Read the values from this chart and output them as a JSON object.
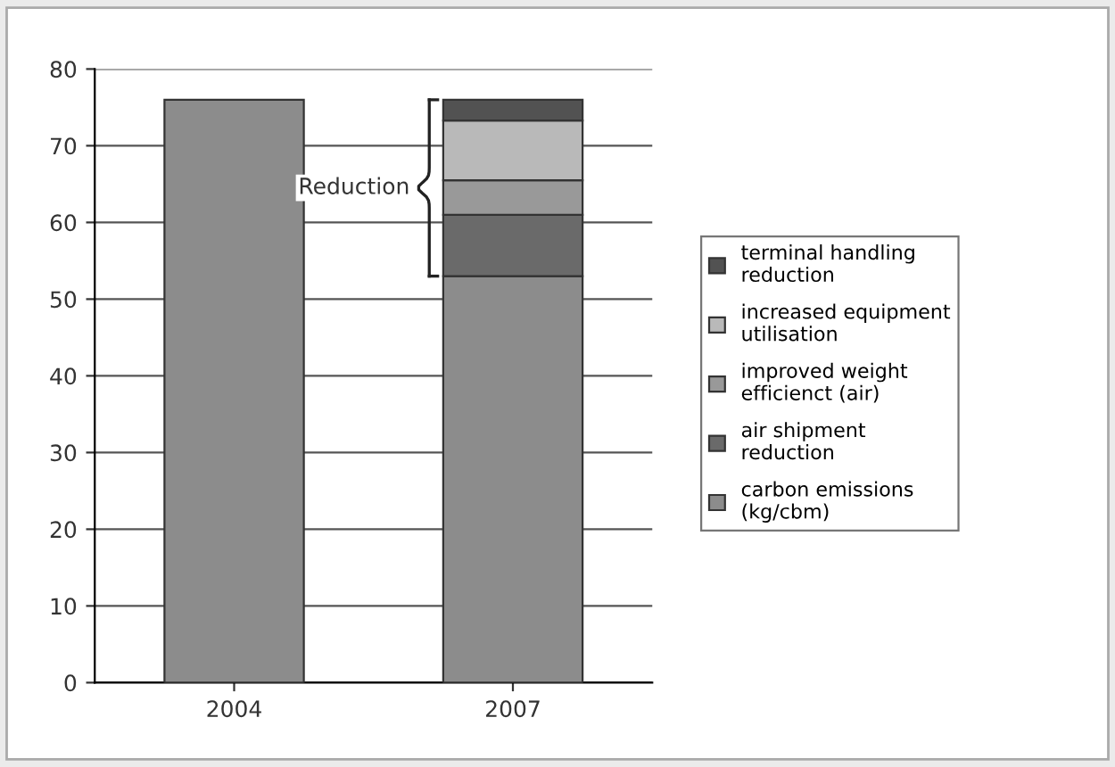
{
  "chart_data": {
    "type": "bar",
    "stacked": true,
    "categories": [
      "2004",
      "2007"
    ],
    "series": [
      {
        "name": "carbon emissions (kg/cbm)",
        "color": "#8c8c8c",
        "values": [
          76,
          53
        ]
      },
      {
        "name": "air shipment reduction",
        "color": "#6a6a6a",
        "values": [
          null,
          8
        ]
      },
      {
        "name": "improved weight efficienct (air)",
        "color": "#999999",
        "values": [
          null,
          4.5
        ]
      },
      {
        "name": "increased equipment utilisation",
        "color": "#b9b9b9",
        "values": [
          null,
          7.8
        ]
      },
      {
        "name": "terminal handling reduction",
        "color": "#525252",
        "values": [
          null,
          2.7
        ]
      }
    ],
    "ylim": [
      0,
      80
    ],
    "yticks": [
      0,
      10,
      20,
      30,
      40,
      50,
      60,
      70,
      80
    ],
    "grid": "y",
    "legend": "right",
    "annotations": [
      "Reduction"
    ]
  }
}
